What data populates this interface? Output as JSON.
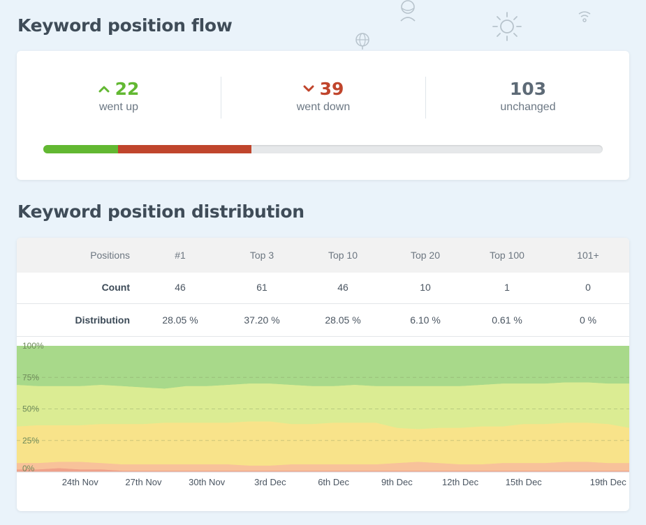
{
  "flow": {
    "title": "Keyword position flow",
    "up": {
      "value": "22",
      "label": "went up"
    },
    "down": {
      "value": "39",
      "label": "went down"
    },
    "unchanged": {
      "value": "103",
      "label": "unchanged"
    },
    "bar_fraction": {
      "up": 0.134,
      "down": 0.238,
      "unchanged": 0.628
    },
    "colors": {
      "up": "#62b832",
      "down": "#c0452c",
      "unchanged": "#e6e8ea",
      "neutral_text": "#5d6a76"
    }
  },
  "distribution": {
    "title": "Keyword position distribution",
    "header": {
      "label": "Positions",
      "columns": [
        "#1",
        "Top 3",
        "Top 10",
        "Top 20",
        "Top 100",
        "101+"
      ]
    },
    "count_row": {
      "label": "Count",
      "values": [
        "46",
        "61",
        "46",
        "10",
        "1",
        "0"
      ]
    },
    "distribution_row": {
      "label": "Distribution",
      "values": [
        "28.05 %",
        "37.20 %",
        "28.05 %",
        "6.10 %",
        "0.61 %",
        "0 %"
      ]
    }
  },
  "chart_data": {
    "type": "area",
    "stacked": true,
    "y_tick_labels": [
      "100%",
      "75%",
      "50%",
      "25%",
      "0%"
    ],
    "y_ticks": [
      100,
      75,
      50,
      25,
      0
    ],
    "ylim": [
      0,
      100
    ],
    "x_tick_labels": [
      "24th Nov",
      "27th Nov",
      "30th Nov",
      "3rd Dec",
      "6th Dec",
      "9th Dec",
      "12th Dec",
      "15th Dec",
      "19th Dec"
    ],
    "x_tick_day_index": [
      3,
      6,
      9,
      12,
      15,
      18,
      21,
      24,
      28
    ],
    "x_day_range": [
      0,
      29
    ],
    "grid": "dashed-horizontal",
    "series_boundaries": [
      {
        "upper_pct": [
          69,
          68,
          68,
          68,
          69,
          68,
          67,
          66,
          68,
          68,
          69,
          70,
          70,
          69,
          68,
          68,
          69,
          68,
          68,
          68,
          68,
          68,
          69,
          70,
          70,
          70,
          71,
          71,
          70,
          70
        ],
        "color": "#a8d98a"
      },
      {
        "upper_pct": [
          36,
          37,
          37,
          37,
          38,
          38,
          38,
          39,
          39,
          39,
          39,
          40,
          40,
          38,
          38,
          39,
          39,
          39,
          35,
          34,
          35,
          35,
          36,
          36,
          38,
          38,
          39,
          39,
          38,
          35
        ],
        "color": "#dbec93"
      },
      {
        "upper_pct": [
          7,
          7,
          8,
          8,
          7,
          6,
          6,
          6,
          6,
          6,
          6,
          5,
          5,
          6,
          6,
          6,
          6,
          6,
          7,
          8,
          7,
          6,
          6,
          7,
          7,
          7,
          8,
          8,
          7,
          7
        ],
        "color": "#f8e38a"
      },
      {
        "upper_pct": [
          2,
          2,
          3,
          2,
          2,
          1,
          1,
          1,
          1,
          1,
          1,
          1,
          1,
          1,
          1,
          1,
          1,
          1,
          1,
          1,
          1,
          1,
          1,
          1,
          1,
          1,
          1,
          1,
          1,
          1
        ],
        "color": "#f8c29a"
      }
    ],
    "bottom_band_color": "#efa18a"
  }
}
